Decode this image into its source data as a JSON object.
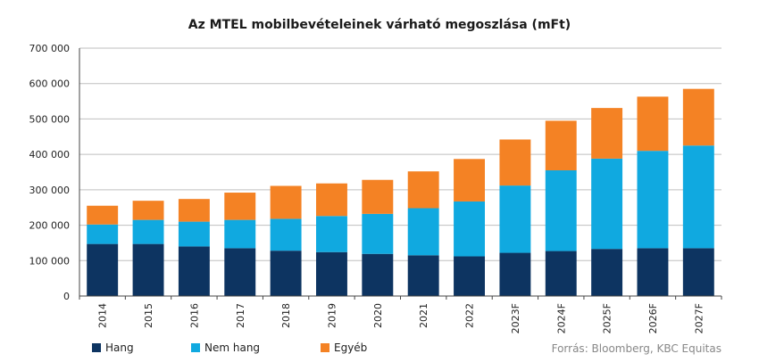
{
  "chart_data": {
    "type": "bar",
    "stacked": true,
    "title": "Az MTEL mobilbevételeinek várható megoszlása (mFt)",
    "categories": [
      "2014",
      "2015",
      "2016",
      "2017",
      "2018",
      "2019",
      "2020",
      "2021",
      "2022",
      "2023F",
      "2024F",
      "2025F",
      "2026F",
      "2027F"
    ],
    "series": [
      {
        "name": "Hang",
        "color": "#0d3461",
        "values": [
          147000,
          147000,
          140000,
          135000,
          128000,
          124000,
          119000,
          115000,
          112000,
          122000,
          127000,
          133000,
          135000,
          135000
        ]
      },
      {
        "name": "Nem hang",
        "color": "#10a9e0",
        "values": [
          55000,
          68000,
          70000,
          80000,
          90000,
          102000,
          113000,
          133000,
          155000,
          190000,
          228000,
          255000,
          275000,
          290000
        ]
      },
      {
        "name": "Egyéb",
        "color": "#f48224",
        "values": [
          53000,
          54000,
          64000,
          77000,
          93000,
          92000,
          96000,
          104000,
          120000,
          130000,
          140000,
          143000,
          153000,
          160000
        ]
      }
    ],
    "ylim": [
      0,
      700000
    ],
    "yticks": [
      "0",
      "100 000",
      "200 000",
      "300 000",
      "400 000",
      "500 000",
      "600 000",
      "700 000"
    ],
    "ytick_values": [
      0,
      100000,
      200000,
      300000,
      400000,
      500000,
      600000,
      700000
    ],
    "xlabel": "",
    "ylabel": "",
    "grid": true,
    "gridColor": "#bfbfbf",
    "legend": "bottom-left"
  },
  "source_text": "Forrás: Bloomberg, KBC Equitas"
}
